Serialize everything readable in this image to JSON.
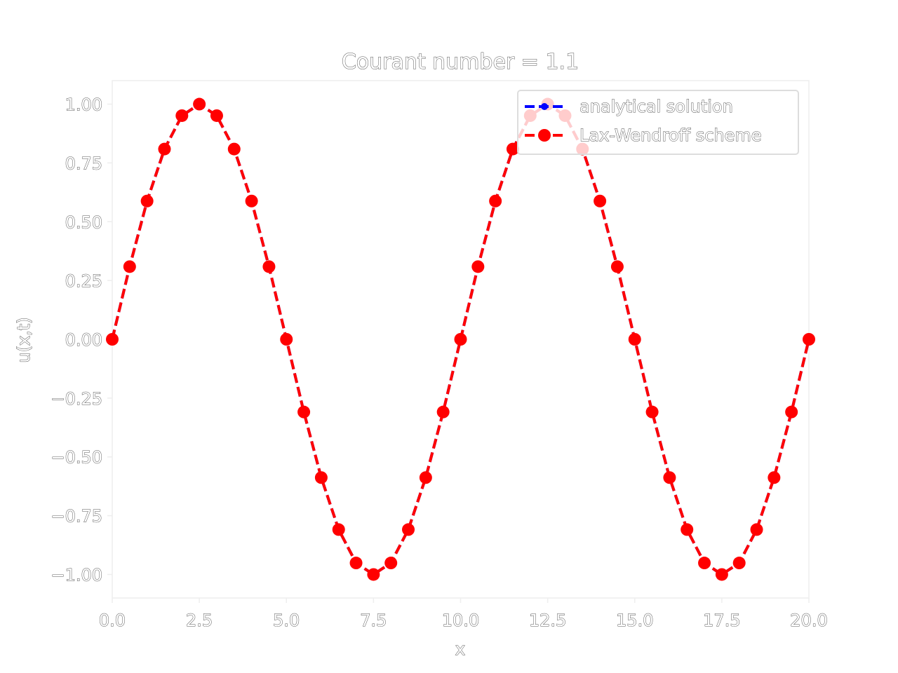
{
  "chart_data": {
    "type": "line",
    "title": "Courant number = 1.1",
    "xlabel": "x",
    "ylabel": "u(x,t)",
    "xlim": [
      0.0,
      20.0
    ],
    "ylim": [
      -1.1,
      1.1
    ],
    "xticks": [
      "0.0",
      "2.5",
      "5.0",
      "7.5",
      "10.0",
      "12.5",
      "15.0",
      "17.5",
      "20.0"
    ],
    "yticks": [
      "1.00",
      "0.75",
      "0.50",
      "0.25",
      "0.00",
      "−0.25",
      "−0.50",
      "−0.75",
      "−1.00"
    ],
    "legend_position": "top-right",
    "grid": false,
    "x": [
      0.0,
      0.5,
      1.0,
      1.5,
      2.0,
      2.5,
      3.0,
      3.5,
      4.0,
      4.5,
      5.0,
      5.5,
      6.0,
      6.5,
      7.0,
      7.5,
      8.0,
      8.5,
      9.0,
      9.5,
      10.0,
      10.5,
      11.0,
      11.5,
      12.0,
      12.5,
      13.0,
      13.5,
      14.0,
      14.5,
      15.0,
      15.5,
      16.0,
      16.5,
      17.0,
      17.5,
      18.0,
      18.5,
      19.0,
      19.5,
      20.0
    ],
    "series": [
      {
        "name": "analytical solution",
        "color": "#0000ff",
        "line_style": "dashed",
        "marker": "small-circle",
        "values": [
          0.0,
          0.309,
          0.588,
          0.809,
          0.951,
          1.0,
          0.951,
          0.809,
          0.588,
          0.309,
          0.0,
          -0.309,
          -0.588,
          -0.809,
          -0.951,
          -1.0,
          -0.951,
          -0.809,
          -0.588,
          -0.309,
          0.0,
          0.309,
          0.588,
          0.809,
          0.951,
          1.0,
          0.951,
          0.809,
          0.588,
          0.309,
          0.0,
          -0.309,
          -0.588,
          -0.809,
          -0.951,
          -1.0,
          -0.951,
          -0.809,
          -0.588,
          -0.309,
          0.0
        ]
      },
      {
        "name": "Lax-Wendroff scheme",
        "color": "#ff0000",
        "line_style": "dashed",
        "marker": "large-circle",
        "values": [
          0.0,
          0.309,
          0.588,
          0.809,
          0.951,
          1.0,
          0.951,
          0.809,
          0.588,
          0.309,
          0.0,
          -0.309,
          -0.588,
          -0.809,
          -0.951,
          -1.0,
          -0.951,
          -0.809,
          -0.588,
          -0.309,
          0.0,
          0.309,
          0.588,
          0.809,
          0.951,
          1.0,
          0.951,
          0.809,
          0.588,
          0.309,
          0.0,
          -0.309,
          -0.588,
          -0.809,
          -0.951,
          -1.0,
          -0.951,
          -0.809,
          -0.588,
          -0.309,
          0.0
        ]
      }
    ]
  }
}
